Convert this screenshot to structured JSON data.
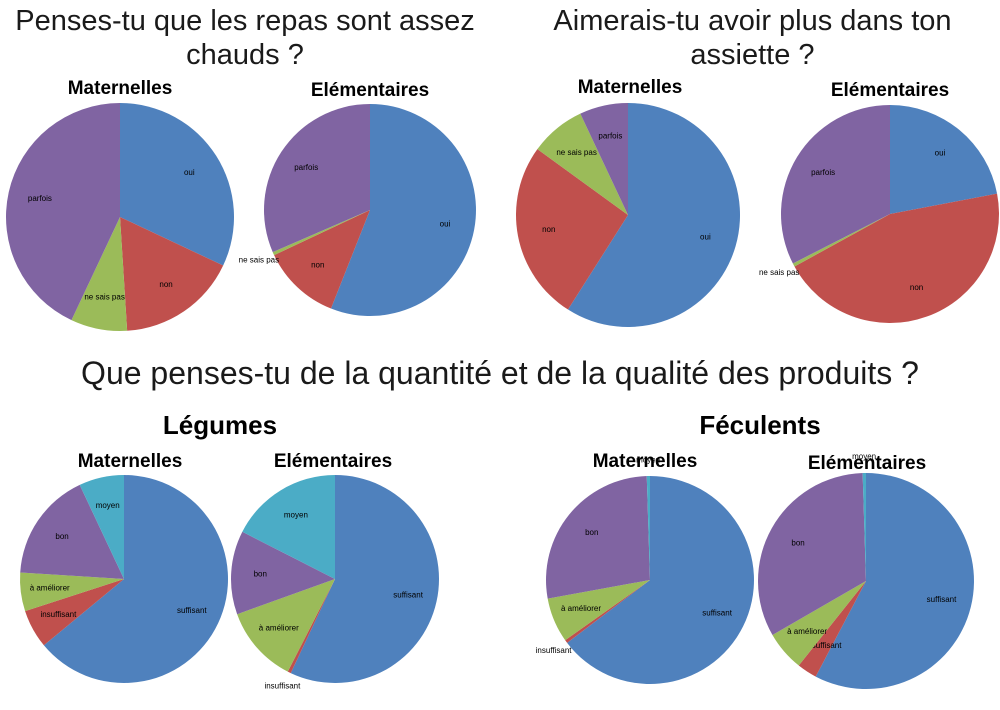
{
  "titles": {
    "q1": "Penses-tu que les repas sont assez chauds ?",
    "q2": "Aimerais-tu avoir plus dans ton assiette ?",
    "q3": "Que penses-tu de la quantité et de la qualité des produits ?",
    "legumes": "Légumes",
    "feculents": "Féculents"
  },
  "chart_data": [
    {
      "type": "pie",
      "group": "Penses-tu que les repas sont assez chauds ?",
      "title": "Maternelles",
      "series": [
        {
          "name": "oui",
          "value": 32
        },
        {
          "name": "non",
          "value": 17
        },
        {
          "name": "ne sais pas",
          "value": 8
        },
        {
          "name": "parfois",
          "value": 43
        }
      ]
    },
    {
      "type": "pie",
      "group": "Penses-tu que les repas sont assez chauds ?",
      "title": "Elémentaires",
      "series": [
        {
          "name": "oui",
          "value": 56
        },
        {
          "name": "non",
          "value": 12
        },
        {
          "name": "ne sais pas",
          "value": 0.5
        },
        {
          "name": "parfois",
          "value": 31.5
        }
      ]
    },
    {
      "type": "pie",
      "group": "Aimerais-tu avoir plus dans ton assiette ?",
      "title": "Maternelles",
      "series": [
        {
          "name": "oui",
          "value": 59
        },
        {
          "name": "non",
          "value": 26
        },
        {
          "name": "ne sais pas",
          "value": 8
        },
        {
          "name": "parfois",
          "value": 7
        }
      ]
    },
    {
      "type": "pie",
      "group": "Aimerais-tu avoir plus dans ton assiette ?",
      "title": "Elémentaires",
      "series": [
        {
          "name": "oui",
          "value": 22
        },
        {
          "name": "non",
          "value": 45
        },
        {
          "name": "ne sais pas",
          "value": 0.5
        },
        {
          "name": "parfois",
          "value": 32.5
        }
      ]
    },
    {
      "type": "pie",
      "group": "Légumes",
      "title": "Maternelles",
      "series": [
        {
          "name": "suffisant",
          "value": 64
        },
        {
          "name": "insuffisant",
          "value": 6
        },
        {
          "name": "à améliorer",
          "value": 6
        },
        {
          "name": "bon",
          "value": 17
        },
        {
          "name": "moyen",
          "value": 7
        }
      ]
    },
    {
      "type": "pie",
      "group": "Légumes",
      "title": "Elémentaires",
      "series": [
        {
          "name": "suffisant",
          "value": 57
        },
        {
          "name": "insuffisant",
          "value": 0.5
        },
        {
          "name": "à améliorer",
          "value": 12
        },
        {
          "name": "bon",
          "value": 13
        },
        {
          "name": "moyen",
          "value": 17.5
        }
      ]
    },
    {
      "type": "pie",
      "group": "Féculents",
      "title": "Maternelles",
      "series": [
        {
          "name": "suffisant",
          "value": 65
        },
        {
          "name": "insuffisant",
          "value": 0.5
        },
        {
          "name": "à améliorer",
          "value": 7
        },
        {
          "name": "bon",
          "value": 27.5
        },
        {
          "name": "moyen",
          "value": 0.5
        }
      ]
    },
    {
      "type": "pie",
      "group": "Féculents",
      "title": "Elémentaires",
      "series": [
        {
          "name": "suffisant",
          "value": 58
        },
        {
          "name": "insuffisant",
          "value": 3
        },
        {
          "name": "à améliorer",
          "value": 6
        },
        {
          "name": "bon",
          "value": 33
        },
        {
          "name": "moyen",
          "value": 0.5
        }
      ]
    }
  ],
  "colors": {
    "oui": "#4F81BD",
    "non": "#C0504D",
    "ne sais pas": "#9BBB59",
    "parfois": "#8064A2",
    "suffisant": "#4F81BD",
    "insuffisant": "#C0504D",
    "à améliorer": "#9BBB59",
    "bon": "#8064A2",
    "moyen": "#4BACC6"
  }
}
